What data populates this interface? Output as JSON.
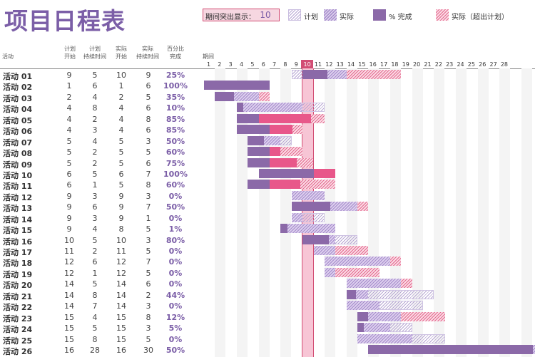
{
  "title": "项目日程表",
  "highlight": {
    "label": "期间突出显示：",
    "value": "10"
  },
  "legend": {
    "plan": "计划",
    "actual": "实际",
    "percent": "% 完成",
    "beyond": "实际（超出计划）"
  },
  "columns": {
    "activity": "活动",
    "plan_start": [
      "计划",
      "开始"
    ],
    "plan_duration": [
      "计划",
      "持续时间"
    ],
    "actual_start": [
      "实际",
      "开始"
    ],
    "actual_duration": [
      "实际",
      "持续时间"
    ],
    "percent": [
      "百分比",
      "完成"
    ],
    "period": "期间"
  },
  "highlight_period": 10,
  "periods": [
    "1",
    "2",
    "3",
    "4",
    "5",
    "6",
    "7",
    "8",
    "9",
    "10",
    "11",
    "12",
    "13",
    "14",
    "15",
    "16",
    "17",
    "18",
    "19",
    "20",
    "21",
    "22",
    "23",
    "24",
    "25",
    "26",
    "27",
    "28"
  ],
  "activities": [
    {
      "name": "活动 01",
      "ps": "9",
      "pd": "5",
      "as": "10",
      "ad": "9",
      "pct": "25%",
      "pctv": 0.25
    },
    {
      "name": "活动 02",
      "ps": "1",
      "pd": "6",
      "as": "1",
      "ad": "6",
      "pct": "100%",
      "pctv": 1.0
    },
    {
      "name": "活动 03",
      "ps": "2",
      "pd": "4",
      "as": "2",
      "ad": "5",
      "pct": "35%",
      "pctv": 0.35
    },
    {
      "name": "活动 04",
      "ps": "4",
      "pd": "8",
      "as": "4",
      "ad": "6",
      "pct": "10%",
      "pctv": 0.1
    },
    {
      "name": "活动 05",
      "ps": "4",
      "pd": "2",
      "as": "4",
      "ad": "8",
      "pct": "85%",
      "pctv": 0.85
    },
    {
      "name": "活动 06",
      "ps": "4",
      "pd": "3",
      "as": "4",
      "ad": "6",
      "pct": "85%",
      "pctv": 0.85
    },
    {
      "name": "活动 07",
      "ps": "5",
      "pd": "4",
      "as": "5",
      "ad": "3",
      "pct": "50%",
      "pctv": 0.5
    },
    {
      "name": "活动 08",
      "ps": "5",
      "pd": "2",
      "as": "5",
      "ad": "5",
      "pct": "60%",
      "pctv": 0.6
    },
    {
      "name": "活动 09",
      "ps": "5",
      "pd": "2",
      "as": "5",
      "ad": "6",
      "pct": "75%",
      "pctv": 0.75
    },
    {
      "name": "活动 10",
      "ps": "6",
      "pd": "5",
      "as": "6",
      "ad": "7",
      "pct": "100%",
      "pctv": 1.0
    },
    {
      "name": "活动 11",
      "ps": "6",
      "pd": "1",
      "as": "5",
      "ad": "8",
      "pct": "60%",
      "pctv": 0.6
    },
    {
      "name": "活动 12",
      "ps": "9",
      "pd": "3",
      "as": "9",
      "ad": "3",
      "pct": "0%",
      "pctv": 0
    },
    {
      "name": "活动 13",
      "ps": "9",
      "pd": "6",
      "as": "9",
      "ad": "7",
      "pct": "50%",
      "pctv": 0.5
    },
    {
      "name": "活动 14",
      "ps": "9",
      "pd": "3",
      "as": "9",
      "ad": "1",
      "pct": "0%",
      "pctv": 0
    },
    {
      "name": "活动 15",
      "ps": "9",
      "pd": "4",
      "as": "8",
      "ad": "5",
      "pct": "1%",
      "pctv": 0.01
    },
    {
      "name": "活动 16",
      "ps": "10",
      "pd": "5",
      "as": "10",
      "ad": "3",
      "pct": "80%",
      "pctv": 0.8
    },
    {
      "name": "活动 17",
      "ps": "11",
      "pd": "2",
      "as": "11",
      "ad": "5",
      "pct": "0%",
      "pctv": 0
    },
    {
      "name": "活动 18",
      "ps": "12",
      "pd": "6",
      "as": "12",
      "ad": "7",
      "pct": "0%",
      "pctv": 0
    },
    {
      "name": "活动 19",
      "ps": "12",
      "pd": "1",
      "as": "12",
      "ad": "5",
      "pct": "0%",
      "pctv": 0
    },
    {
      "name": "活动 20",
      "ps": "14",
      "pd": "5",
      "as": "14",
      "ad": "6",
      "pct": "0%",
      "pctv": 0
    },
    {
      "name": "活动 21",
      "ps": "14",
      "pd": "8",
      "as": "14",
      "ad": "2",
      "pct": "44%",
      "pctv": 0.44
    },
    {
      "name": "活动 22",
      "ps": "14",
      "pd": "7",
      "as": "14",
      "ad": "3",
      "pct": "0%",
      "pctv": 0
    },
    {
      "name": "活动 23",
      "ps": "15",
      "pd": "4",
      "as": "15",
      "ad": "8",
      "pct": "12%",
      "pctv": 0.12
    },
    {
      "name": "活动 24",
      "ps": "15",
      "pd": "5",
      "as": "15",
      "ad": "3",
      "pct": "5%",
      "pctv": 0.05
    },
    {
      "name": "活动 25",
      "ps": "15",
      "pd": "8",
      "as": "15",
      "ad": "5",
      "pct": "0%",
      "pctv": 0
    },
    {
      "name": "活动 26",
      "ps": "16",
      "pd": "28",
      "as": "16",
      "ad": "30",
      "pct": "50%",
      "pctv": 0.5
    }
  ],
  "colors": {
    "title": "#7b5ea7",
    "percent_complete": "#8b69a8",
    "beyond": "#e8578a",
    "highlight": "#f7c5d5"
  }
}
